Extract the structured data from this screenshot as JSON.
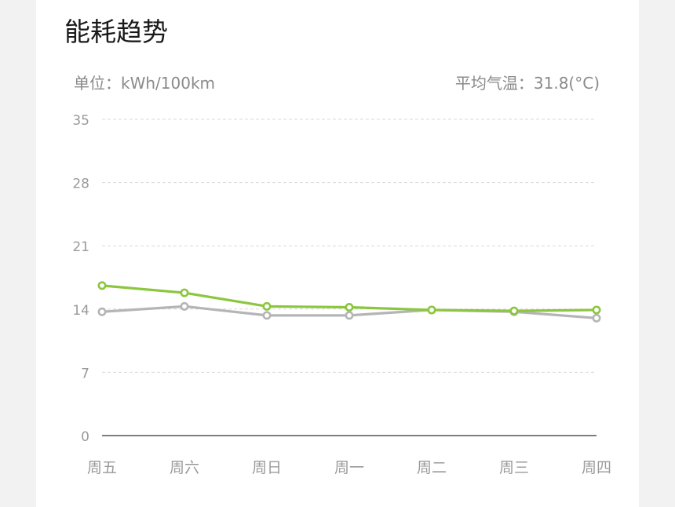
{
  "header": {
    "title": "能耗趋势",
    "unit_label": "单位：kWh/100km",
    "avg_temp_label": "平均气温：31.8(°C)"
  },
  "chart_data": {
    "type": "line",
    "categories": [
      "周五",
      "周六",
      "周日",
      "周一",
      "周二",
      "周三",
      "周四"
    ],
    "series": [
      {
        "values": [
          16.6,
          15.8,
          14.3,
          14.2,
          13.9,
          13.8,
          13.9
        ],
        "color": "#8cc63f"
      },
      {
        "values": [
          13.7,
          14.3,
          13.3,
          13.3,
          13.9,
          13.7,
          13.0
        ],
        "color": "#b5b5b5"
      }
    ],
    "yticks": [
      0,
      7,
      14,
      21,
      28,
      35
    ],
    "ylim": [
      0,
      35
    ],
    "grid": true,
    "colors": {
      "axis": "#555555",
      "grid": "#d9d9d9",
      "tick_label": "#9a9a9a"
    }
  }
}
